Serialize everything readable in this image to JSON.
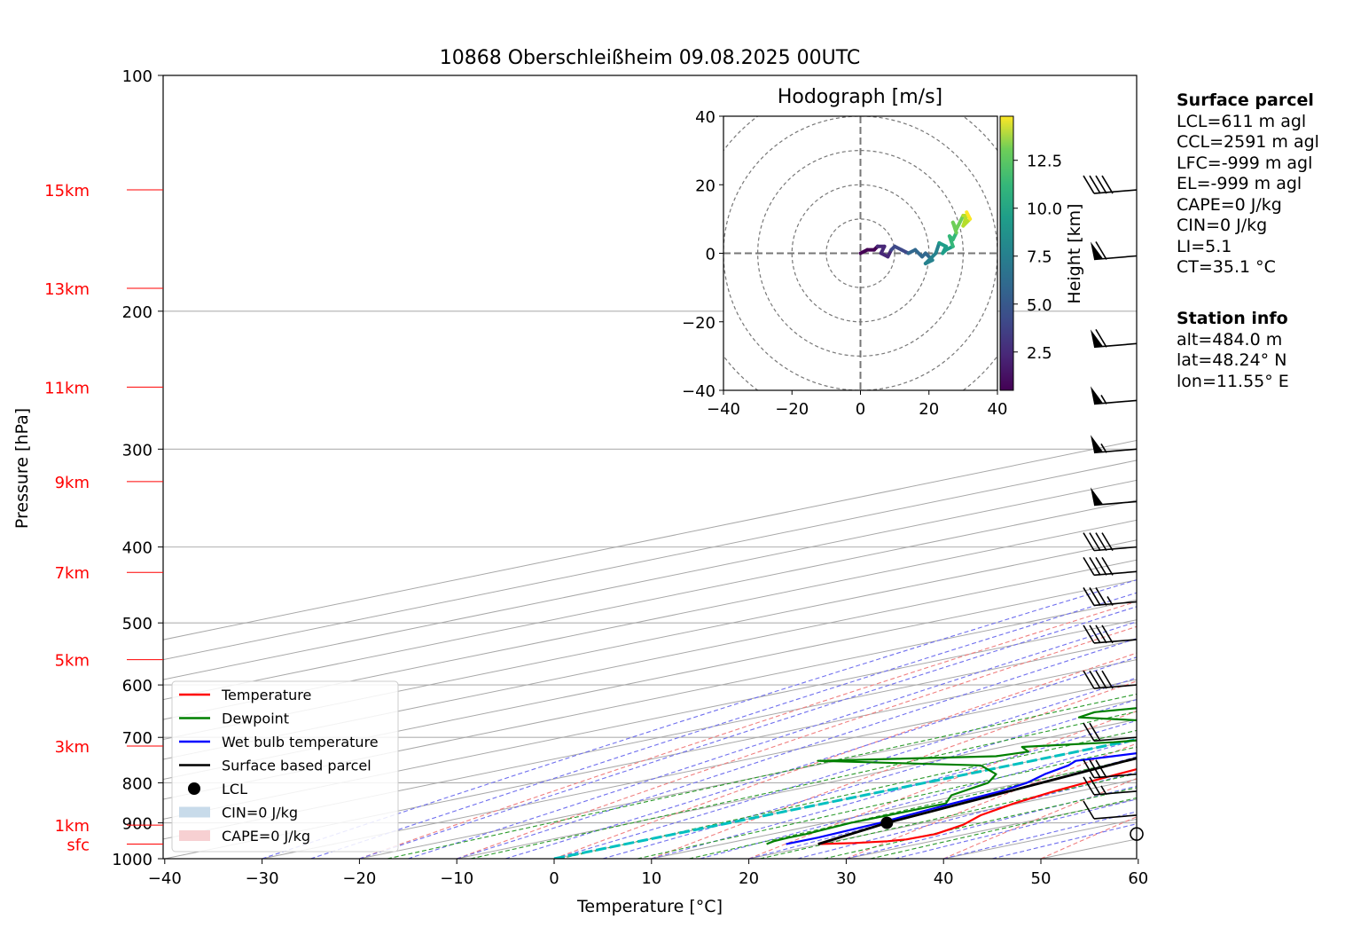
{
  "chart_data": {
    "type": "skew-t",
    "title": "10868 Oberschleißheim 09.08.2025 00UTC",
    "xlabel": "Temperature [°C]",
    "ylabel": "Pressure [hPa]",
    "xlim": [
      -40,
      60
    ],
    "ylim": [
      1000,
      100
    ],
    "y_scale": "log",
    "grid": true,
    "x_ticks": [
      -40,
      -30,
      -20,
      -10,
      0,
      10,
      20,
      30,
      40,
      50,
      60
    ],
    "x_tick_labels": [
      "−40",
      "−30",
      "−20",
      "−10",
      "0",
      "10",
      "20",
      "30",
      "40",
      "50",
      "60"
    ],
    "y_ticks": [
      1000,
      900,
      800,
      700,
      600,
      500,
      400,
      300,
      200,
      100
    ],
    "y_tick_labels": [
      "1000",
      "900",
      "800",
      "700",
      "600",
      "500",
      "400",
      "300",
      "200",
      "100"
    ],
    "height_markers": [
      {
        "label": "sfc",
        "p": 958
      },
      {
        "label": "1km",
        "p": 906
      },
      {
        "label": "3km",
        "p": 718
      },
      {
        "label": "5km",
        "p": 557
      },
      {
        "label": "7km",
        "p": 431
      },
      {
        "label": "9km",
        "p": 330
      },
      {
        "label": "11km",
        "p": 250
      },
      {
        "label": "13km",
        "p": 187
      },
      {
        "label": "15km",
        "p": 140
      }
    ],
    "legend_position": "lower-left",
    "legend": [
      {
        "label": "Temperature",
        "type": "line",
        "color": "#ff0000"
      },
      {
        "label": "Dewpoint",
        "type": "line",
        "color": "#008000"
      },
      {
        "label": "Wet bulb temperature",
        "type": "line",
        "color": "#0000ff"
      },
      {
        "label": "Surface based parcel",
        "type": "line",
        "color": "#000000"
      },
      {
        "label": "LCL",
        "type": "marker",
        "color": "#000000"
      },
      {
        "label": "CIN=0 J/kg",
        "type": "patch",
        "color": "#c8dbea"
      },
      {
        "label": "CAPE=0 J/kg",
        "type": "patch",
        "color": "#f7d0d2"
      }
    ],
    "series": [
      {
        "name": "Temperature",
        "color": "#ff0000",
        "points": [
          [
            958,
            19.8
          ],
          [
            955,
            23
          ],
          [
            950,
            25.5
          ],
          [
            945,
            26.5
          ],
          [
            930,
            26.8
          ],
          [
            905,
            25
          ],
          [
            880,
            22
          ],
          [
            850,
            19.5
          ],
          [
            820,
            17.5
          ],
          [
            800,
            16.5
          ],
          [
            780,
            15.5
          ],
          [
            740,
            13.5
          ],
          [
            720,
            12
          ],
          [
            700,
            10.5
          ],
          [
            680,
            9
          ],
          [
            650,
            7.5
          ],
          [
            620,
            6.5
          ],
          [
            600,
            5.5
          ],
          [
            570,
            4
          ],
          [
            550,
            2.5
          ],
          [
            520,
            0.5
          ],
          [
            500,
            -1
          ],
          [
            470,
            -3
          ],
          [
            440,
            -5.5
          ],
          [
            420,
            -7
          ],
          [
            400,
            -8.8
          ],
          [
            380,
            -10.5
          ],
          [
            350,
            -14
          ],
          [
            320,
            -17.5
          ],
          [
            300,
            -20
          ],
          [
            280,
            -24
          ],
          [
            260,
            -28
          ],
          [
            240,
            -33
          ],
          [
            220,
            -38
          ],
          [
            200,
            -44
          ],
          [
            190,
            -47
          ],
          [
            180,
            -50
          ],
          [
            170,
            -51
          ],
          [
            165,
            -50
          ],
          [
            160,
            -48
          ],
          [
            150,
            -45
          ],
          [
            145,
            -42
          ],
          [
            140,
            -40
          ]
        ]
      },
      {
        "name": "Dewpoint",
        "color": "#008000",
        "points": [
          [
            958,
            14.5
          ],
          [
            950,
            13.8
          ],
          [
            940,
            13.5
          ],
          [
            930,
            13.5
          ],
          [
            900,
            12.5
          ],
          [
            880,
            12.5
          ],
          [
            850,
            12.5
          ],
          [
            830,
            9
          ],
          [
            800,
            6.5
          ],
          [
            780,
            3
          ],
          [
            760,
            -3
          ],
          [
            750,
            -22
          ],
          [
            740,
            -6
          ],
          [
            730,
            -5
          ],
          [
            720,
            -8
          ],
          [
            710,
            -1
          ],
          [
            700,
            3
          ],
          [
            690,
            5
          ],
          [
            680,
            2
          ],
          [
            670,
            -4
          ],
          [
            660,
            -17
          ],
          [
            650,
            -18
          ],
          [
            640,
            -15
          ],
          [
            630,
            -17
          ],
          [
            620,
            -16
          ],
          [
            610,
            -17
          ],
          [
            600,
            -18
          ],
          [
            590,
            -16
          ],
          [
            580,
            -15
          ],
          [
            570,
            -13
          ],
          [
            560,
            -15
          ],
          [
            550,
            -10
          ],
          [
            540,
            -17
          ],
          [
            530,
            -10
          ],
          [
            520,
            -12
          ],
          [
            510,
            -9
          ],
          [
            500,
            -14
          ],
          [
            490,
            -13
          ],
          [
            480,
            -14
          ],
          [
            470,
            -13
          ],
          [
            460,
            -17
          ],
          [
            450,
            -15
          ],
          [
            440,
            -14
          ],
          [
            430,
            -13
          ],
          [
            420,
            -18
          ],
          [
            410,
            -20
          ],
          [
            400,
            -18
          ],
          [
            390,
            -20
          ],
          [
            380,
            -21
          ],
          [
            370,
            -29
          ],
          [
            360,
            -23
          ],
          [
            350,
            -26
          ],
          [
            340,
            -25
          ],
          [
            330,
            -32
          ],
          [
            320,
            -36
          ],
          [
            310,
            -38
          ],
          [
            300,
            -39
          ],
          [
            290,
            -40
          ],
          [
            280,
            -42
          ],
          [
            270,
            -41
          ],
          [
            260,
            -42
          ],
          [
            250,
            -45
          ],
          [
            240,
            -47
          ],
          [
            230,
            -49
          ],
          [
            220,
            -51
          ],
          [
            210,
            -52
          ],
          [
            200,
            -53
          ],
          [
            190,
            -55
          ],
          [
            180,
            -57
          ],
          [
            175,
            -57
          ],
          [
            170,
            -55
          ],
          [
            165,
            -61
          ],
          [
            160,
            -71
          ],
          [
            155,
            -72
          ],
          [
            150,
            -73
          ],
          [
            140,
            -75
          ],
          [
            130,
            -77
          ],
          [
            125,
            -78
          ]
        ]
      },
      {
        "name": "Wet bulb temperature",
        "color": "#0000ff",
        "points": [
          [
            958,
            16.5
          ],
          [
            940,
            16.5
          ],
          [
            900,
            15.5
          ],
          [
            880,
            14.5
          ],
          [
            850,
            13.2
          ],
          [
            820,
            12
          ],
          [
            800,
            10.5
          ],
          [
            780,
            8
          ],
          [
            760,
            6
          ],
          [
            750,
            4.5
          ],
          [
            740,
            6
          ],
          [
            720,
            9
          ],
          [
            700,
            11
          ],
          [
            680,
            10
          ],
          [
            660,
            8.5
          ],
          [
            640,
            4.5
          ],
          [
            620,
            2
          ],
          [
            600,
            0.5
          ],
          [
            580,
            -0.5
          ],
          [
            560,
            -1.5
          ],
          [
            540,
            -2.5
          ],
          [
            520,
            -4
          ],
          [
            500,
            -5.5
          ],
          [
            480,
            -7.5
          ],
          [
            460,
            -9.5
          ],
          [
            440,
            -11.5
          ],
          [
            420,
            -13.5
          ],
          [
            400,
            -15
          ],
          [
            380,
            -16.5
          ],
          [
            360,
            -19.5
          ],
          [
            340,
            -23
          ],
          [
            320,
            -26
          ],
          [
            300,
            -29
          ],
          [
            280,
            -31.5
          ],
          [
            260,
            -35
          ],
          [
            240,
            -39.5
          ],
          [
            220,
            -44
          ],
          [
            200,
            -48
          ],
          [
            190,
            -50
          ],
          [
            180,
            -51.5
          ],
          [
            175,
            -52
          ],
          [
            170,
            -51
          ],
          [
            165,
            -51
          ],
          [
            160,
            -50
          ],
          [
            155,
            -48
          ],
          [
            150,
            -46
          ],
          [
            145,
            -43
          ],
          [
            140,
            -41
          ]
        ]
      },
      {
        "name": "Surface based parcel",
        "color": "#000000",
        "points": [
          [
            958,
            19.8
          ],
          [
            900,
            16.2
          ],
          [
            800,
            12
          ],
          [
            700,
            7.2
          ],
          [
            600,
            1.2
          ],
          [
            500,
            -6.5
          ],
          [
            400,
            -17
          ],
          [
            300,
            -31
          ],
          [
            200,
            -50
          ],
          [
            150,
            -62
          ],
          [
            140,
            -64
          ]
        ]
      }
    ],
    "lcl": {
      "p": 900,
      "t": 16.2
    },
    "isotherm_0c": "cyan dashed line",
    "surface_parcel": {
      "title": "Surface parcel",
      "lines": [
        "LCL=611 m agl",
        "CCL=2591 m agl",
        "LFC=-999 m agl",
        "EL=-999 m agl",
        "CAPE=0 J/kg",
        "CIN=0 J/kg",
        "LI=5.1",
        "CT=35.1 °C"
      ]
    },
    "station_info": {
      "title": "Station info",
      "lines": [
        "alt=484.0 m",
        "lat=48.24° N",
        "lon=11.55° E"
      ]
    },
    "wind_barbs": [
      {
        "p": 930,
        "calm": true
      },
      {
        "p": 880,
        "speed_kt": 10
      },
      {
        "p": 820,
        "speed_kt": 25
      },
      {
        "p": 780,
        "speed_kt": 30
      },
      {
        "p": 700,
        "speed_kt": 20
      },
      {
        "p": 600,
        "speed_kt": 40
      },
      {
        "p": 525,
        "speed_kt": 40
      },
      {
        "p": 470,
        "speed_kt": 35
      },
      {
        "p": 430,
        "speed_kt": 40
      },
      {
        "p": 400,
        "speed_kt": 40
      },
      {
        "p": 350,
        "speed_kt": 50
      },
      {
        "p": 300,
        "speed_kt": 55
      },
      {
        "p": 260,
        "speed_kt": 55
      },
      {
        "p": 220,
        "speed_kt": 60
      },
      {
        "p": 170,
        "speed_kt": 60
      },
      {
        "p": 140,
        "speed_kt": 40
      }
    ],
    "hodograph": {
      "title": "Hodograph [m/s]",
      "xlim": [
        -40,
        40
      ],
      "ylim": [
        -40,
        40
      ],
      "x_tick_labels": [
        "−40",
        "−20",
        "0",
        "20",
        "40"
      ],
      "y_tick_labels": [
        "40",
        "20",
        "0",
        "−20",
        "−40"
      ],
      "colorbar_label": "Height [km]",
      "colorbar_ticks": [
        "2.5",
        "5.0",
        "7.5",
        "10.0",
        "12.5"
      ],
      "colormap": "viridis",
      "height_range_km": [
        0.5,
        14.8
      ],
      "points": [
        [
          0,
          0
        ],
        [
          2,
          1
        ],
        [
          4,
          1
        ],
        [
          5,
          2
        ],
        [
          7,
          2
        ],
        [
          6,
          0
        ],
        [
          8,
          -1
        ],
        [
          9,
          1
        ],
        [
          10,
          2
        ],
        [
          12,
          1
        ],
        [
          14,
          0
        ],
        [
          16,
          1
        ],
        [
          18,
          -1
        ],
        [
          19,
          0
        ],
        [
          21,
          -2
        ],
        [
          19,
          -3
        ],
        [
          22,
          0
        ],
        [
          23,
          3
        ],
        [
          25,
          2
        ],
        [
          24,
          0
        ],
        [
          25,
          1
        ],
        [
          27,
          2
        ],
        [
          26,
          5
        ],
        [
          27,
          4
        ],
        [
          28,
          6
        ],
        [
          27,
          9
        ],
        [
          28,
          7
        ],
        [
          29,
          9
        ],
        [
          30,
          11
        ],
        [
          31,
          11
        ],
        [
          30,
          8
        ],
        [
          32,
          10
        ],
        [
          31,
          12
        ]
      ]
    }
  }
}
